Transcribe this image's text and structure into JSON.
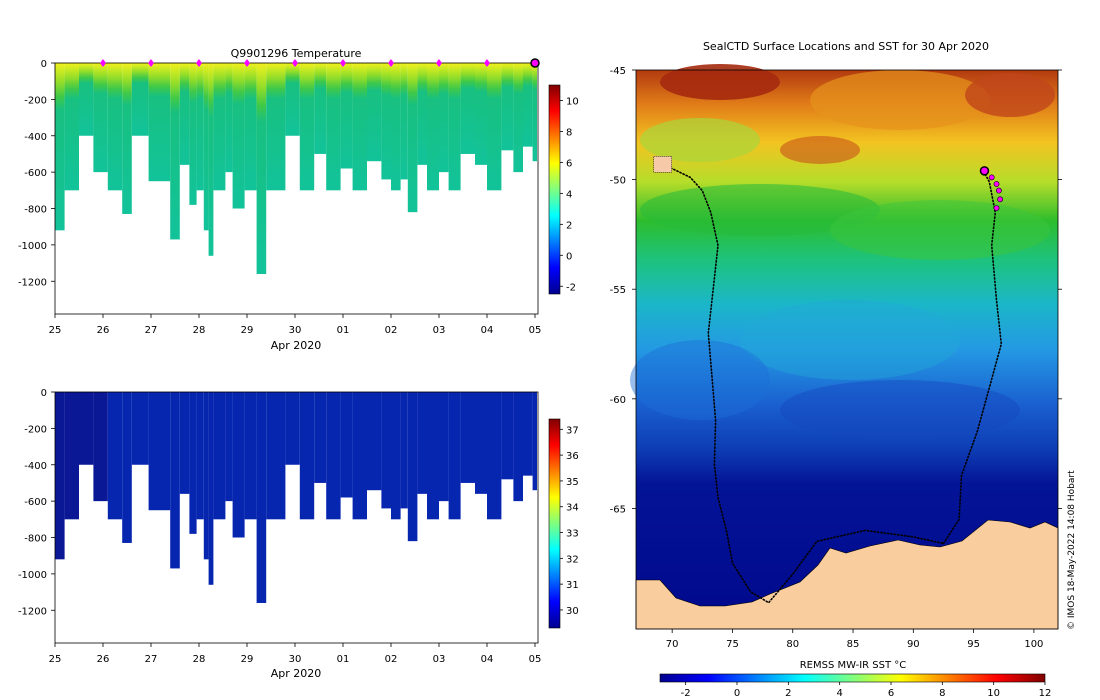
{
  "figure": {
    "credit": "© IMOS 18-May-2022 14:08 Hobart"
  },
  "colors": {
    "land": "#f9cd9e",
    "track": "#000000",
    "profile_marker": "#ff00ff",
    "current_position": "#ff00ff"
  },
  "chart_data": [
    {
      "id": "temperature-section",
      "type": "heatmap",
      "title": "Q9901296  Temperature",
      "xlabel": "Apr 2020",
      "ylabel": "",
      "x_ticks": [
        "25",
        "26",
        "27",
        "28",
        "29",
        "30",
        "01",
        "02",
        "03",
        "04",
        "05"
      ],
      "x_range": [
        25,
        35
      ],
      "y_ticks": [
        0,
        -200,
        -400,
        -600,
        -800,
        -1000,
        -1200
      ],
      "ylim": [
        -1380,
        0
      ],
      "profile_markers_day": [
        26,
        27,
        28,
        29,
        30,
        31,
        32,
        33,
        34
      ],
      "current_day": 35,
      "colorbar": {
        "min": -2.5,
        "max": 11,
        "ticks": [
          10,
          8,
          6,
          4,
          2,
          0,
          -2
        ]
      },
      "profiles": [
        {
          "t": 25.0,
          "depth": -920
        },
        {
          "t": 25.2,
          "depth": -700
        },
        {
          "t": 25.5,
          "depth": -400
        },
        {
          "t": 25.8,
          "depth": -600
        },
        {
          "t": 26.1,
          "depth": -700
        },
        {
          "t": 26.4,
          "depth": -830
        },
        {
          "t": 26.6,
          "depth": -400
        },
        {
          "t": 26.95,
          "depth": -650
        },
        {
          "t": 27.4,
          "depth": -970
        },
        {
          "t": 27.6,
          "depth": -560
        },
        {
          "t": 27.8,
          "depth": -780
        },
        {
          "t": 27.95,
          "depth": -700
        },
        {
          "t": 28.1,
          "depth": -920
        },
        {
          "t": 28.2,
          "depth": -1060
        },
        {
          "t": 28.3,
          "depth": -700
        },
        {
          "t": 28.55,
          "depth": -600
        },
        {
          "t": 28.7,
          "depth": -800
        },
        {
          "t": 28.95,
          "depth": -700
        },
        {
          "t": 29.2,
          "depth": -1160
        },
        {
          "t": 29.4,
          "depth": -700
        },
        {
          "t": 29.8,
          "depth": -400
        },
        {
          "t": 30.1,
          "depth": -700
        },
        {
          "t": 30.4,
          "depth": -500
        },
        {
          "t": 30.65,
          "depth": -700
        },
        {
          "t": 30.95,
          "depth": -580
        },
        {
          "t": 31.2,
          "depth": -700
        },
        {
          "t": 31.5,
          "depth": -540
        },
        {
          "t": 31.8,
          "depth": -640
        },
        {
          "t": 32.0,
          "depth": -700
        },
        {
          "t": 32.2,
          "depth": -640
        },
        {
          "t": 32.35,
          "depth": -820
        },
        {
          "t": 32.55,
          "depth": -560
        },
        {
          "t": 32.75,
          "depth": -700
        },
        {
          "t": 33.0,
          "depth": -600
        },
        {
          "t": 33.2,
          "depth": -700
        },
        {
          "t": 33.45,
          "depth": -500
        },
        {
          "t": 33.75,
          "depth": -560
        },
        {
          "t": 34.0,
          "depth": -700
        },
        {
          "t": 34.3,
          "depth": -480
        },
        {
          "t": 34.55,
          "depth": -600
        },
        {
          "t": 34.75,
          "depth": -460
        },
        {
          "t": 34.95,
          "depth": -540
        }
      ]
    },
    {
      "id": "salinity-section",
      "type": "heatmap",
      "title": "",
      "xlabel": "Apr 2020",
      "ylabel": "",
      "x_ticks": [
        "25",
        "26",
        "27",
        "28",
        "29",
        "30",
        "01",
        "02",
        "03",
        "04",
        "05"
      ],
      "x_range": [
        25,
        35
      ],
      "y_ticks": [
        0,
        -200,
        -400,
        -600,
        -800,
        -1000,
        -1200
      ],
      "ylim": [
        -1380,
        0
      ],
      "colorbar": {
        "min": 29.3,
        "max": 37.4,
        "ticks": [
          37,
          36,
          35,
          34,
          33,
          32,
          31,
          30
        ]
      }
    },
    {
      "id": "sst-map",
      "type": "heatmap",
      "title": "SealCTD Surface Locations and SST for 30 Apr 2020",
      "xlabel": "",
      "ylabel": "",
      "x_ticks": [
        70,
        75,
        80,
        85,
        90,
        95,
        100
      ],
      "y_ticks": [
        -45,
        -50,
        -55,
        -60,
        -65
      ],
      "xlim": [
        67,
        102
      ],
      "ylim": [
        -70.5,
        -45
      ],
      "colorbar": {
        "label": "REMSS MW-IR SST °C",
        "min": -3,
        "max": 12,
        "ticks": [
          -2,
          0,
          2,
          4,
          6,
          8,
          10,
          12
        ]
      },
      "tracks": [
        {
          "name": "track-west",
          "lon_lat": [
            [
              68.8,
              -49.3
            ],
            [
              70.0,
              -49.5
            ],
            [
              71.5,
              -49.9
            ],
            [
              72.5,
              -50.5
            ],
            [
              73.2,
              -51.5
            ],
            [
              73.8,
              -53.0
            ],
            [
              73.4,
              -55.0
            ],
            [
              73.0,
              -57.0
            ],
            [
              73.3,
              -59.0
            ],
            [
              73.6,
              -61.0
            ],
            [
              73.5,
              -63.0
            ],
            [
              73.8,
              -64.5
            ],
            [
              74.5,
              -66.0
            ],
            [
              75.0,
              -67.5
            ],
            [
              76.5,
              -68.8
            ],
            [
              78.0,
              -69.3
            ],
            [
              80.0,
              -68.0
            ],
            [
              82.0,
              -66.5
            ],
            [
              86.0,
              -66.0
            ],
            [
              90.0,
              -66.3
            ],
            [
              92.5,
              -66.6
            ]
          ]
        },
        {
          "name": "track-east",
          "lon_lat": [
            [
              92.5,
              -66.6
            ],
            [
              93.8,
              -65.5
            ],
            [
              94.0,
              -63.5
            ],
            [
              95.3,
              -61.5
            ],
            [
              96.3,
              -59.5
            ],
            [
              97.3,
              -57.5
            ],
            [
              96.9,
              -55.5
            ],
            [
              96.5,
              -53.0
            ],
            [
              96.8,
              -51.5
            ],
            [
              96.3,
              -50.1
            ],
            [
              95.9,
              -49.7
            ]
          ]
        }
      ],
      "profile_points": [
        [
          96.5,
          -49.9
        ],
        [
          96.9,
          -50.2
        ],
        [
          97.1,
          -50.5
        ],
        [
          97.2,
          -50.9
        ],
        [
          96.9,
          -51.3
        ]
      ],
      "current_position": [
        95.9,
        -49.6
      ]
    }
  ]
}
